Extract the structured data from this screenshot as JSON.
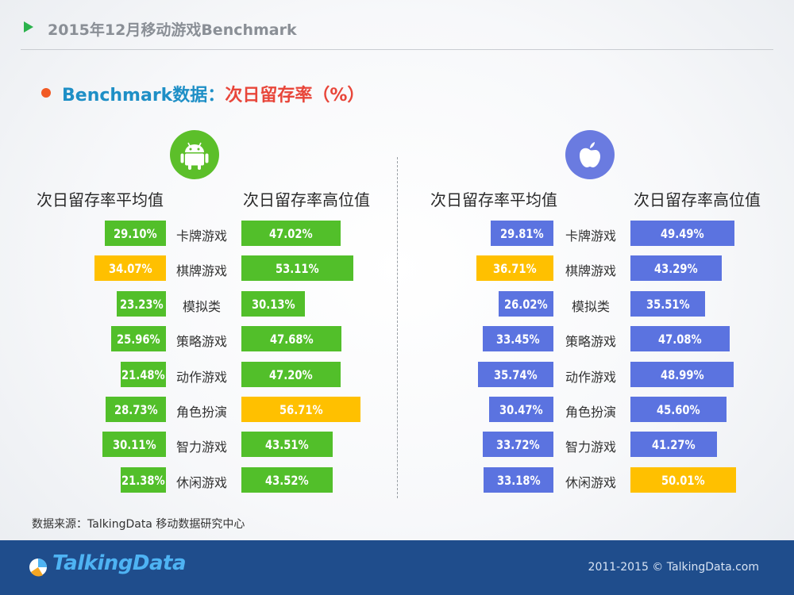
{
  "header": {
    "title": "2015年12月移动游戏Benchmark"
  },
  "subtitle": {
    "part1": "Benchmark数据：",
    "part2": "次日留存率（%）"
  },
  "colors": {
    "green": "#52bf2a",
    "blue": "#5b73e0",
    "yellow": "#ffc000",
    "title_blue": "#1e8fc6",
    "title_red": "#e8463a"
  },
  "icons": {
    "android": "android-icon",
    "apple": "apple-icon"
  },
  "columns": {
    "avg": "次日留存率平均值",
    "high": "次日留存率高位值"
  },
  "chart_data": [
    {
      "type": "bar",
      "platform": "android",
      "categories": [
        "卡牌游戏",
        "棋牌游戏",
        "模拟类",
        "策略游戏",
        "动作游戏",
        "角色扮演",
        "智力游戏",
        "休闲游戏"
      ],
      "series": [
        {
          "name": "次日留存率平均值",
          "values": [
            29.1,
            34.07,
            23.23,
            25.96,
            21.48,
            28.73,
            30.11,
            21.38
          ],
          "labels": [
            "29.10%",
            "34.07%",
            "23.23%",
            "25.96%",
            "21.48%",
            "28.73%",
            "30.11%",
            "21.38%"
          ],
          "highlight_index": 1
        },
        {
          "name": "次日留存率高位值",
          "values": [
            47.02,
            53.11,
            30.13,
            47.68,
            47.2,
            56.71,
            43.51,
            43.52
          ],
          "labels": [
            "47.02%",
            "53.11%",
            "30.13%",
            "47.68%",
            "47.20%",
            "56.71%",
            "43.51%",
            "43.52%"
          ],
          "highlight_index": 5
        }
      ]
    },
    {
      "type": "bar",
      "platform": "ios",
      "categories": [
        "卡牌游戏",
        "棋牌游戏",
        "模拟类",
        "策略游戏",
        "动作游戏",
        "角色扮演",
        "智力游戏",
        "休闲游戏"
      ],
      "series": [
        {
          "name": "次日留存率平均值",
          "values": [
            29.81,
            36.71,
            26.02,
            33.45,
            35.74,
            30.47,
            33.72,
            33.18
          ],
          "labels": [
            "29.81%",
            "36.71%",
            "26.02%",
            "33.45%",
            "35.74%",
            "30.47%",
            "33.72%",
            "33.18%"
          ],
          "highlight_index": 1
        },
        {
          "name": "次日留存率高位值",
          "values": [
            49.49,
            43.29,
            35.51,
            47.08,
            48.99,
            45.6,
            41.27,
            50.01
          ],
          "labels": [
            "49.49%",
            "43.29%",
            "35.51%",
            "47.08%",
            "48.99%",
            "45.60%",
            "41.27%",
            "50.01%"
          ],
          "highlight_index": 7
        }
      ]
    }
  ],
  "source": "数据来源：TalkingData 移动数据研究中心",
  "footer": {
    "logo_text": "TalkingData",
    "copyright": "2011-2015 © TalkingData.com"
  }
}
